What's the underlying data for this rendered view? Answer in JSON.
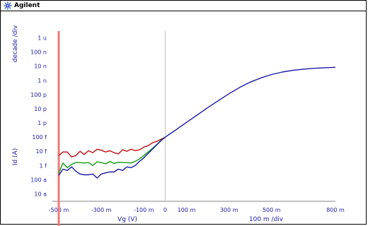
{
  "app": {
    "brand": "Agilent",
    "brand_icon": "agilent-spark-icon",
    "brand_color": "#1f3fbf"
  },
  "chart_data": {
    "type": "line",
    "title": "",
    "xlabel": "Vg (V)",
    "ylabel": "Id (A)",
    "y_scale_label": "decade /div",
    "x_scale_label": "100 m /div",
    "x_scale": "linear",
    "y_scale": "log",
    "xlim": [
      -0.53,
      0.8
    ],
    "ylim": [
      3e-18,
      3e-06
    ],
    "grid": false,
    "legend": "none",
    "x_ticks": [
      {
        "value": -0.5,
        "label": "-500 m"
      },
      {
        "value": -0.3,
        "label": "-300 m"
      },
      {
        "value": -0.1,
        "label": "-100 m"
      },
      {
        "value": 0,
        "label": "0"
      },
      {
        "value": 0.1,
        "label": "100 m"
      },
      {
        "value": 0.3,
        "label": "300 m"
      },
      {
        "value": 0.5,
        "label": "500 m"
      },
      {
        "value": 0.8,
        "label": "800 m"
      }
    ],
    "y_ticks": [
      {
        "value": 1e-06,
        "label": "1 u"
      },
      {
        "value": 1e-07,
        "label": "100 n"
      },
      {
        "value": 1e-08,
        "label": "10 n"
      },
      {
        "value": 1e-09,
        "label": "1 n"
      },
      {
        "value": 1e-10,
        "label": "100 p"
      },
      {
        "value": 1e-11,
        "label": "10 p"
      },
      {
        "value": 1e-12,
        "label": "1 p"
      },
      {
        "value": 1e-13,
        "label": "100 f"
      },
      {
        "value": 1e-14,
        "label": "10 f"
      },
      {
        "value": 1e-15,
        "label": "1 f"
      },
      {
        "value": 1e-16,
        "label": "100 a"
      },
      {
        "value": 1e-17,
        "label": "10 a"
      }
    ],
    "marker": {
      "x": -0.5,
      "color": "#f07878"
    },
    "zero_line": {
      "x": 0,
      "color": "#c0c0c0"
    },
    "series": [
      {
        "color": "#c01010",
        "points": [
          [
            -0.5,
            5e-15
          ],
          [
            -0.48,
            9e-15
          ],
          [
            -0.46,
            9e-15
          ],
          [
            -0.44,
            4e-15
          ],
          [
            -0.42,
            5e-15
          ],
          [
            -0.4,
            1e-14
          ],
          [
            -0.38,
            6e-15
          ],
          [
            -0.36,
            1.1e-14
          ],
          [
            -0.34,
            8e-15
          ],
          [
            -0.32,
            1.4e-14
          ],
          [
            -0.3,
            1.2e-14
          ],
          [
            -0.28,
            9e-15
          ],
          [
            -0.26,
            1.1e-14
          ],
          [
            -0.24,
            8e-15
          ],
          [
            -0.22,
            6.5e-15
          ],
          [
            -0.2,
            1.3e-14
          ],
          [
            -0.18,
            1e-14
          ],
          [
            -0.16,
            1.4e-14
          ],
          [
            -0.14,
            1.1e-14
          ],
          [
            -0.12,
            1.3e-14
          ],
          [
            -0.1,
            2e-14
          ],
          [
            -0.08,
            2.5e-14
          ],
          [
            -0.06,
            4e-14
          ],
          [
            -0.04,
            5e-14
          ],
          [
            -0.02,
            7e-14
          ],
          [
            0.0,
            1e-13
          ]
        ]
      },
      {
        "color": "#10a010",
        "points": [
          [
            -0.5,
            2.8e-16
          ],
          [
            -0.48,
            1.5e-15
          ],
          [
            -0.46,
            7e-16
          ],
          [
            -0.44,
            1.2e-15
          ],
          [
            -0.42,
            1.6e-15
          ],
          [
            -0.4,
            1.6e-15
          ],
          [
            -0.38,
            1.5e-15
          ],
          [
            -0.36,
            1.6e-15
          ],
          [
            -0.34,
            1e-15
          ],
          [
            -0.32,
            1.8e-15
          ],
          [
            -0.3,
            1.6e-15
          ],
          [
            -0.28,
            1.3e-15
          ],
          [
            -0.26,
            1.9e-15
          ],
          [
            -0.24,
            1.4e-15
          ],
          [
            -0.22,
            1.7e-15
          ],
          [
            -0.2,
            1.6e-15
          ],
          [
            -0.18,
            1.6e-15
          ],
          [
            -0.16,
            1.5e-15
          ],
          [
            -0.14,
            2e-15
          ],
          [
            -0.12,
            3e-15
          ],
          [
            -0.1,
            5e-15
          ],
          [
            -0.08,
            9e-15
          ],
          [
            -0.06,
            1.6e-14
          ],
          [
            -0.04,
            3e-14
          ],
          [
            -0.02,
            6e-14
          ],
          [
            0.0,
            1e-13
          ]
        ]
      },
      {
        "color": "#1a1aa8",
        "points": [
          [
            -0.5,
            2e-16
          ],
          [
            -0.48,
            5.5e-16
          ],
          [
            -0.46,
            4.5e-16
          ],
          [
            -0.44,
            8e-16
          ],
          [
            -0.42,
            4e-16
          ],
          [
            -0.4,
            2.5e-16
          ],
          [
            -0.38,
            2.2e-16
          ],
          [
            -0.36,
            2.2e-16
          ],
          [
            -0.34,
            2.5e-16
          ],
          [
            -0.32,
            1.3e-16
          ],
          [
            -0.3,
            2.5e-16
          ],
          [
            -0.28,
            3e-16
          ],
          [
            -0.26,
            3.5e-16
          ],
          [
            -0.24,
            3.5e-16
          ],
          [
            -0.22,
            5.5e-16
          ],
          [
            -0.2,
            4.5e-16
          ],
          [
            -0.18,
            8e-16
          ],
          [
            -0.16,
            7e-16
          ],
          [
            -0.14,
            1e-15
          ],
          [
            -0.12,
            2e-15
          ],
          [
            -0.1,
            3.5e-15
          ],
          [
            -0.08,
            7e-15
          ],
          [
            -0.06,
            1.4e-14
          ],
          [
            -0.04,
            2.8e-14
          ],
          [
            -0.02,
            5.5e-14
          ],
          [
            0.0,
            1e-13
          ],
          [
            0.05,
            3.2e-13
          ],
          [
            0.1,
            1.1e-12
          ],
          [
            0.15,
            3.6e-12
          ],
          [
            0.2,
            1.2e-11
          ],
          [
            0.25,
            3.8e-11
          ],
          [
            0.3,
            1.15e-10
          ],
          [
            0.35,
            3.2e-10
          ],
          [
            0.4,
            7.5e-10
          ],
          [
            0.45,
            1.5e-09
          ],
          [
            0.5,
            2.6e-09
          ],
          [
            0.55,
            3.9e-09
          ],
          [
            0.6,
            5.1e-09
          ],
          [
            0.65,
            6.2e-09
          ],
          [
            0.7,
            7.1e-09
          ],
          [
            0.75,
            7.8e-09
          ],
          [
            0.8,
            8.4e-09
          ]
        ]
      }
    ]
  }
}
